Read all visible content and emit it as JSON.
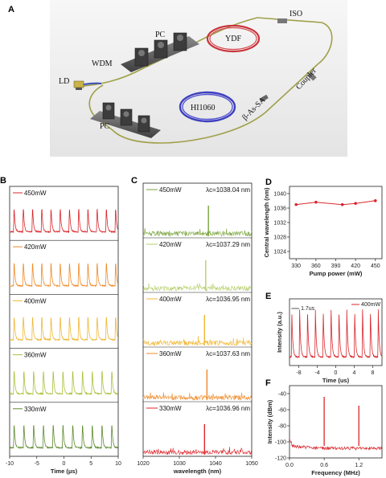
{
  "panel_letters": {
    "a": "A",
    "b": "B",
    "c": "C",
    "d": "D",
    "e": "E",
    "f": "F"
  },
  "schematic": {
    "labels": {
      "ld": "LD",
      "wdm": "WDM",
      "pc_top": "PC",
      "pc_bottom": "PC",
      "ydf": "YDF",
      "iso": "ISO",
      "coupler": "Coupler",
      "sa": "β-As-SA",
      "hi": "HI1060"
    }
  },
  "colors": {
    "450mW": "#d9262c",
    "420mW": "#ef8a28",
    "400mW": "#efb735",
    "360mW": "#a9c23c",
    "330mW": "#5e8b2f",
    "c450": "#7aa33c",
    "c420": "#b6cf6b",
    "c400": "#f1b733",
    "c360": "#ef8a28",
    "c330": "#e0262c",
    "dline": "#d9262c",
    "eline": "#d9262c",
    "fline": "#d9262c"
  },
  "chart_data": [
    {
      "id": "B",
      "type": "line",
      "xlabel": "Time (μs)",
      "xticks": [
        "-10",
        "-5",
        "0",
        "5",
        "10"
      ],
      "xlim": [
        -10,
        10
      ],
      "series": [
        {
          "name": "450mW",
          "pulse_period_us": 1.7
        },
        {
          "name": "420mW",
          "pulse_period_us": 1.7
        },
        {
          "name": "400mW",
          "pulse_period_us": 1.7
        },
        {
          "name": "360mW",
          "pulse_period_us": 1.8
        },
        {
          "name": "330mW",
          "pulse_period_us": 1.8
        }
      ]
    },
    {
      "id": "C",
      "type": "line",
      "xlabel": "wavelength (nm)",
      "xticks": [
        "1020",
        "1030",
        "1040",
        "1050"
      ],
      "xlim": [
        1020,
        1050
      ],
      "series": [
        {
          "name": "450mW",
          "center_label": "λc=1038.04 nm",
          "center_nm": 1038.04
        },
        {
          "name": "420mW",
          "center_label": "λc=1037.29 nm",
          "center_nm": 1037.29
        },
        {
          "name": "400mW",
          "center_label": "λc=1036.95 nm",
          "center_nm": 1036.95
        },
        {
          "name": "360mW",
          "center_label": "λc=1037.63 nm",
          "center_nm": 1037.63
        },
        {
          "name": "330mW",
          "center_label": "λc=1036.96 nm",
          "center_nm": 1036.96
        }
      ]
    },
    {
      "id": "D",
      "type": "line",
      "xlabel": "Pump power (mW)",
      "ylabel": "Central wavelength (nm)",
      "xticks": [
        "330",
        "360",
        "390",
        "420",
        "450"
      ],
      "yticks": [
        "1024",
        "1028",
        "1032",
        "1036",
        "1040"
      ],
      "xlim": [
        320,
        460
      ],
      "ylim": [
        1022,
        1042
      ],
      "x": [
        330,
        360,
        400,
        420,
        450
      ],
      "y": [
        1036.96,
        1037.63,
        1036.95,
        1037.29,
        1038.04
      ]
    },
    {
      "id": "E",
      "type": "line",
      "xlabel": "Time (us)",
      "ylabel": "Intensity (a.u.)",
      "xticks": [
        "-8",
        "-4",
        "0",
        "4",
        "8"
      ],
      "xlim": [
        -10,
        10
      ],
      "legend": "400mW",
      "annotation": "1.7us",
      "pulse_period_us": 1.7
    },
    {
      "id": "F",
      "type": "line",
      "xlabel": "Frequency (MHz)",
      "ylabel": "Intensity (dBm)",
      "xticks": [
        "0.0",
        "0.6",
        "1.2"
      ],
      "yticks": [
        "-40",
        "-60",
        "-80",
        "-100",
        "-120"
      ],
      "xlim": [
        0,
        1.6
      ],
      "ylim": [
        -120,
        -30
      ],
      "peaks": [
        {
          "x": 0.6,
          "y": -44
        },
        {
          "x": 1.2,
          "y": -55
        }
      ],
      "noise_floor_dbm": -103
    }
  ]
}
